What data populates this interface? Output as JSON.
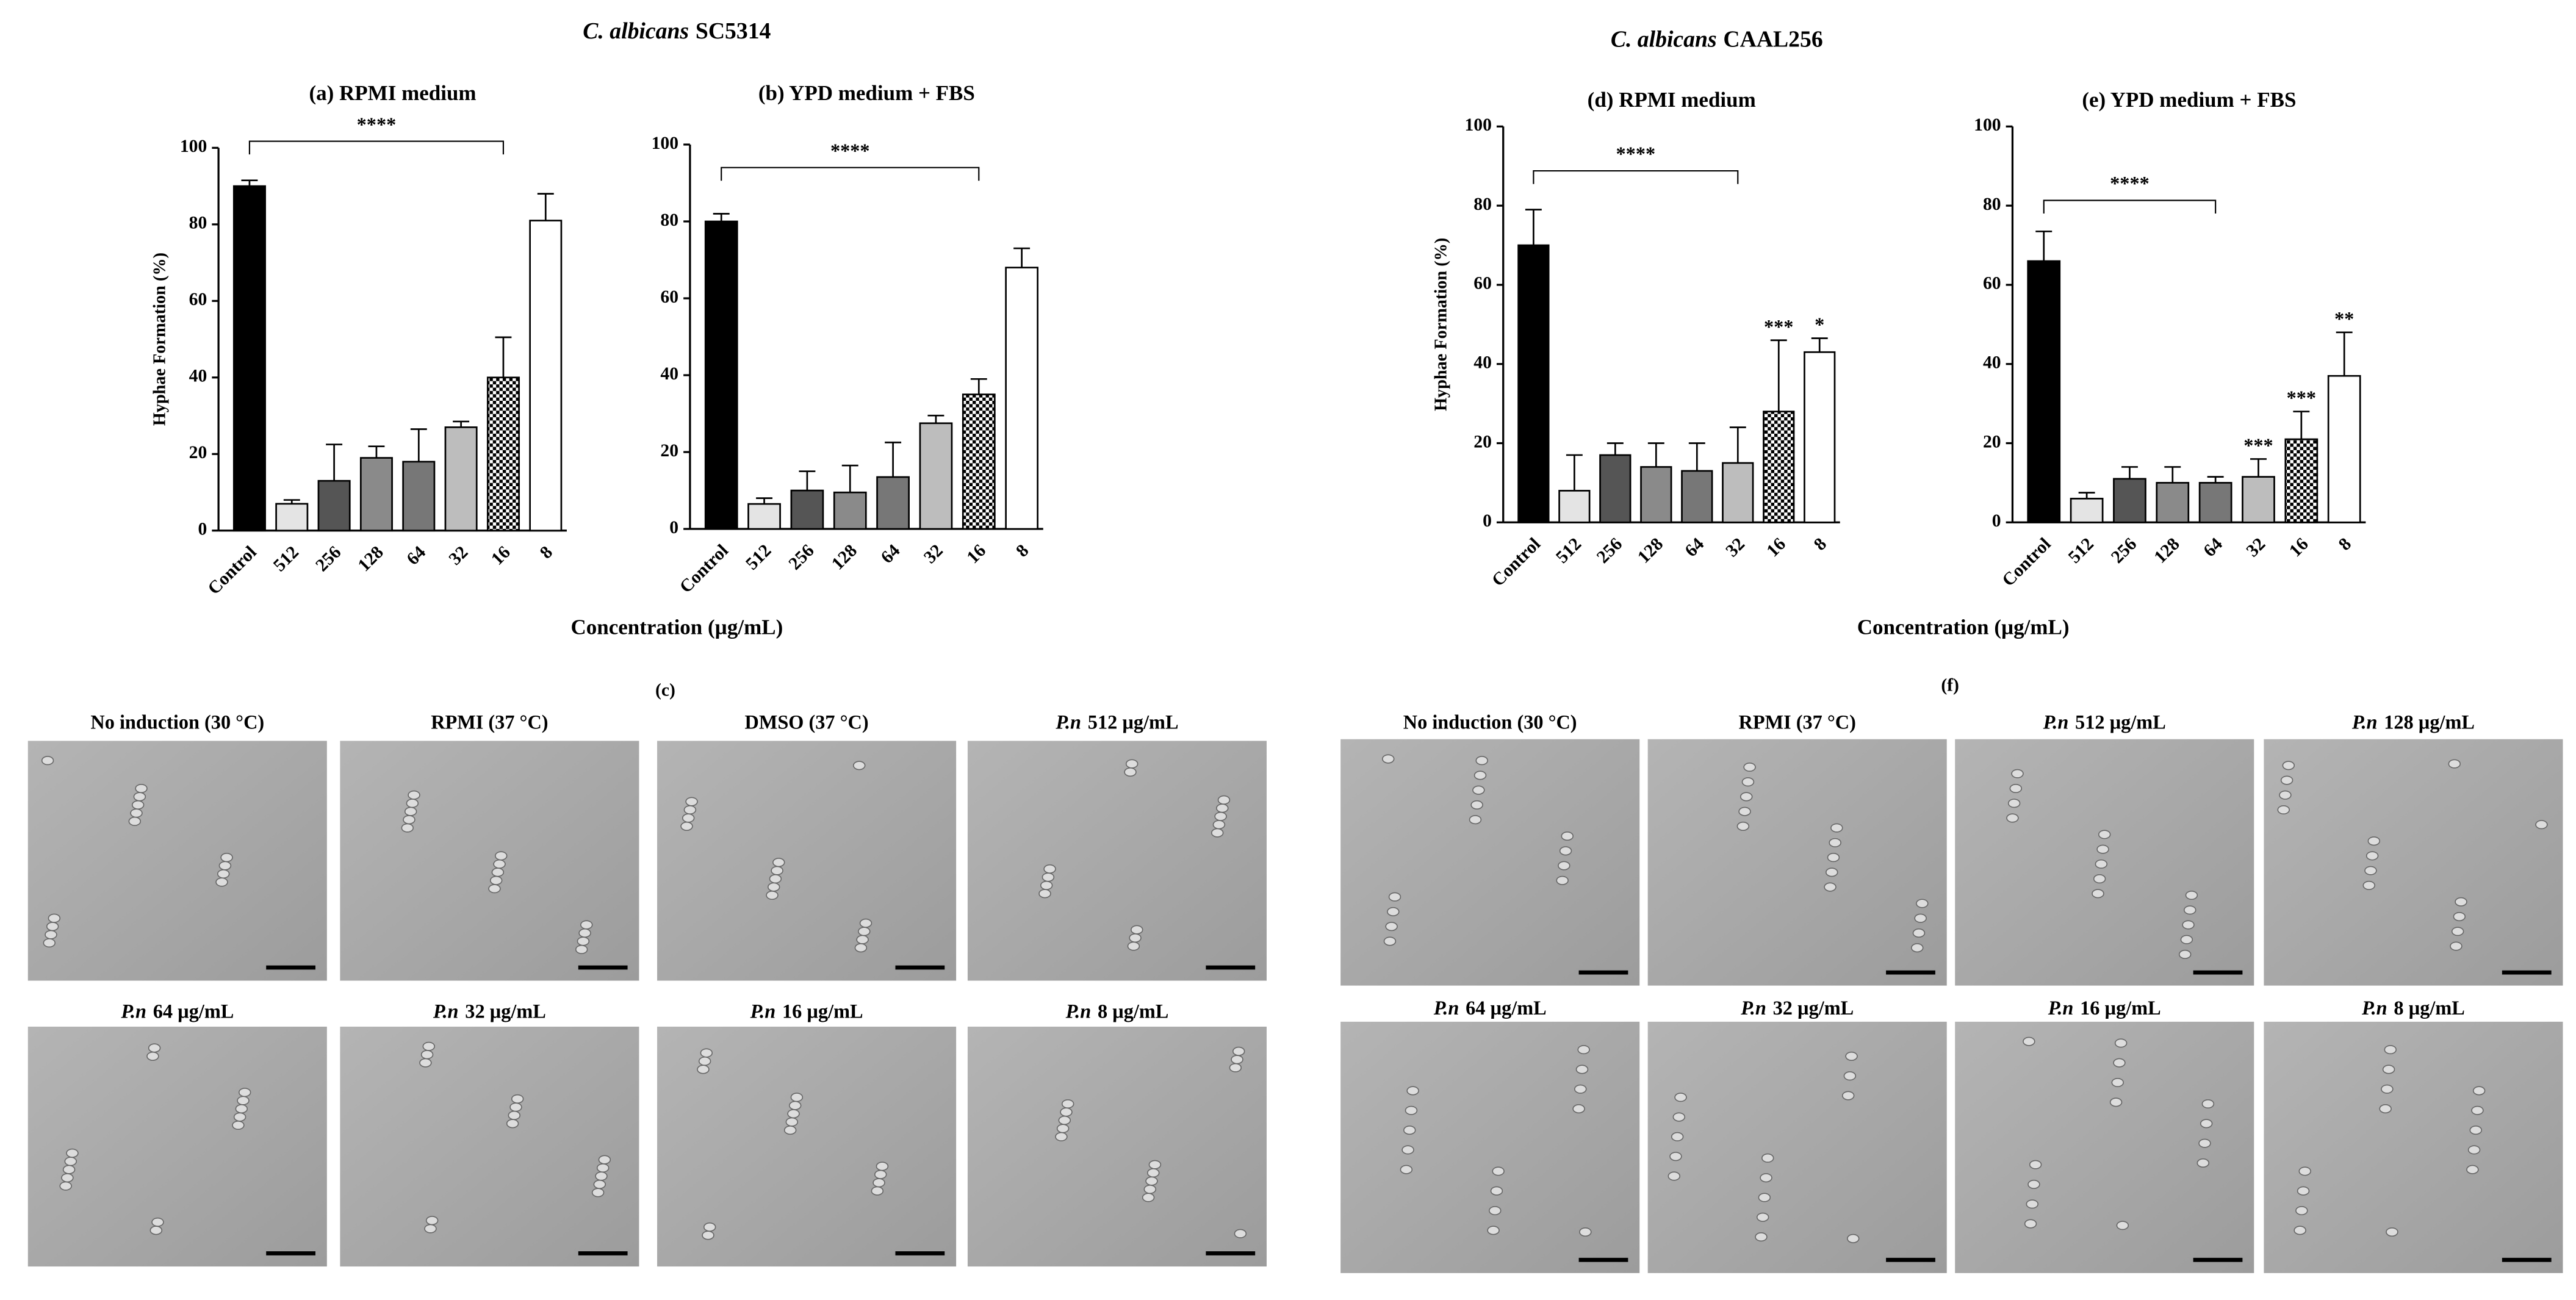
{
  "chart_data": [
    {
      "type": "bar",
      "title": "(a) RPMI medium",
      "y_label": "Hyphae Formation (%)",
      "categories": [
        "Control",
        "512",
        "256",
        "128",
        "64",
        "32",
        "16",
        "8"
      ],
      "values": [
        90,
        7,
        13,
        19,
        18,
        27,
        40,
        81
      ],
      "errors": [
        1.5,
        1,
        9.5,
        3,
        8.5,
        1.5,
        10.5,
        7
      ],
      "colors": [
        "#000000",
        "#e4e4e4",
        "#555555",
        "#8a8a8a",
        "#777777",
        "#bdbdbd",
        "checker",
        "#ffffff"
      ],
      "star_labels": [
        null,
        null,
        null,
        null,
        null,
        null,
        null,
        null
      ],
      "bracket": {
        "label": "****",
        "span": [
          "Control",
          "16"
        ]
      },
      "ylim": [
        0,
        100
      ],
      "yticks": [
        0,
        20,
        40,
        60,
        80,
        100
      ]
    },
    {
      "type": "bar",
      "title": "(b) YPD medium + FBS",
      "categories": [
        "Control",
        "512",
        "256",
        "128",
        "64",
        "32",
        "16",
        "8"
      ],
      "values": [
        80,
        6.5,
        10,
        9.5,
        13.5,
        27.5,
        35,
        68
      ],
      "errors": [
        2,
        1.5,
        5,
        7,
        9,
        2,
        4,
        5
      ],
      "colors": [
        "#000000",
        "#e4e4e4",
        "#555555",
        "#8a8a8a",
        "#777777",
        "#bdbdbd",
        "checker",
        "#ffffff"
      ],
      "star_labels": [
        null,
        null,
        null,
        null,
        null,
        null,
        null,
        null
      ],
      "bracket": {
        "label": "****",
        "span": [
          "Control",
          "16"
        ]
      },
      "ylim": [
        0,
        100
      ],
      "yticks": [
        0,
        20,
        40,
        60,
        80,
        100
      ]
    },
    {
      "type": "bar",
      "title": "(d) RPMI medium",
      "y_label": "Hyphae Formation (%)",
      "categories": [
        "Control",
        "512",
        "256",
        "128",
        "64",
        "32",
        "16",
        "8"
      ],
      "values": [
        70,
        8,
        17,
        14,
        13,
        15,
        28,
        43
      ],
      "errors": [
        9,
        9,
        3,
        6,
        7,
        9,
        18,
        3.5
      ],
      "colors": [
        "#000000",
        "#e4e4e4",
        "#555555",
        "#8a8a8a",
        "#777777",
        "#bdbdbd",
        "checker",
        "#ffffff"
      ],
      "star_labels": [
        null,
        null,
        null,
        null,
        null,
        null,
        "***",
        "*"
      ],
      "bracket": {
        "label": "****",
        "span": [
          "Control",
          "32"
        ]
      },
      "ylim": [
        0,
        100
      ],
      "yticks": [
        0,
        20,
        40,
        60,
        80,
        100
      ]
    },
    {
      "type": "bar",
      "title": "(e) YPD medium + FBS",
      "categories": [
        "Control",
        "512",
        "256",
        "128",
        "64",
        "32",
        "16",
        "8"
      ],
      "values": [
        66,
        6,
        11,
        10,
        10,
        11.5,
        21,
        37
      ],
      "errors": [
        7.5,
        1.5,
        3,
        4,
        1.5,
        4.5,
        7,
        11
      ],
      "colors": [
        "#000000",
        "#e4e4e4",
        "#555555",
        "#8a8a8a",
        "#777777",
        "#bdbdbd",
        "checker",
        "#ffffff"
      ],
      "star_labels": [
        null,
        null,
        null,
        null,
        null,
        "***",
        "***",
        "**"
      ],
      "bracket": {
        "label": "****",
        "span": [
          "Control",
          "64"
        ]
      },
      "ylim": [
        0,
        100
      ],
      "yticks": [
        0,
        20,
        40,
        60,
        80,
        100
      ]
    }
  ],
  "groups": [
    {
      "species": "C. albicans",
      "strain": "SC5314",
      "x_label": "Concentration (µg/mL)"
    },
    {
      "species": "C. albicans",
      "strain": "CAAL256",
      "x_label": "Concentration (µg/mL)"
    }
  ],
  "micrographs": [
    {
      "label": "(c)",
      "captions": [
        {
          "text": "No induction (30 °C)"
        },
        {
          "text": "RPMI  (37 °C)"
        },
        {
          "text": "DMSO (37 °C)"
        },
        {
          "em": "P.n",
          "text": "512 µg/mL"
        },
        {
          "em": "P.n",
          "text": "64 µg/mL"
        },
        {
          "em": "P.n",
          "text": "32 µg/mL"
        },
        {
          "em": "P.n",
          "text": "16 µg/mL"
        },
        {
          "em": "P.n",
          "text": "8 µg/mL"
        }
      ]
    },
    {
      "label": "(f)",
      "captions": [
        {
          "text": "No induction (30 °C)"
        },
        {
          "text": "RPMI  (37 °C)"
        },
        {
          "em": "P.n",
          "text": "512 µg/mL"
        },
        {
          "em": "P.n",
          "text": "128 µg/mL"
        },
        {
          "em": "P.n",
          "text": "64 µg/mL"
        },
        {
          "em": "P.n",
          "text": "32 µg/mL"
        },
        {
          "em": "P.n",
          "text": "16 µg/mL"
        },
        {
          "em": "P.n",
          "text": "8 µg/mL"
        }
      ]
    }
  ]
}
